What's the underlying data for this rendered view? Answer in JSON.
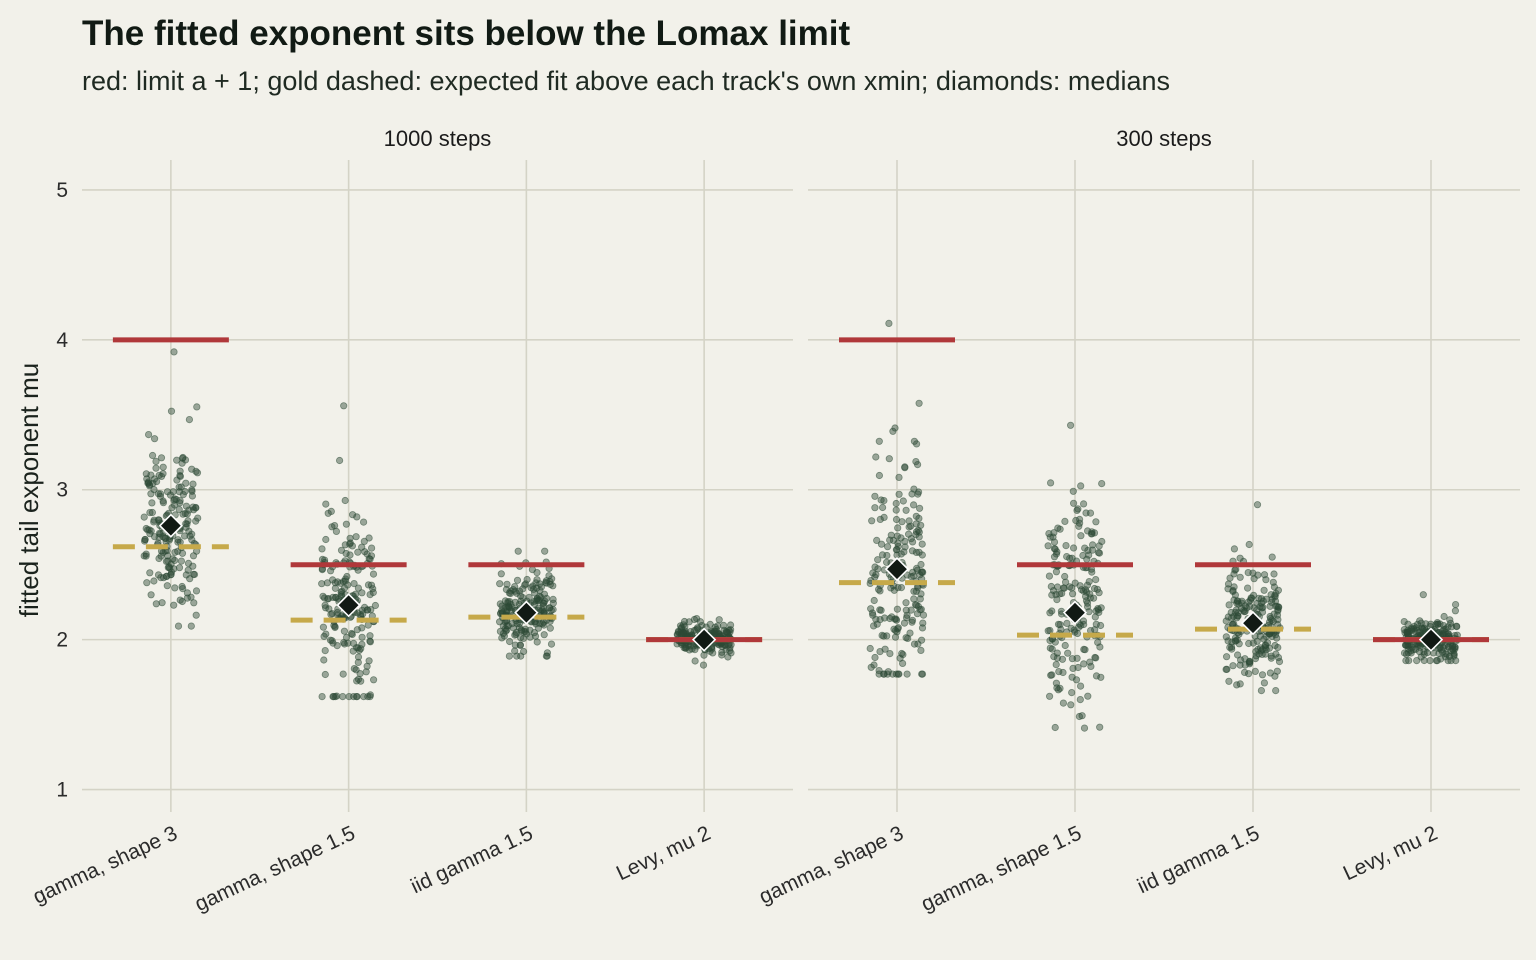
{
  "title": "The fitted exponent sits below the Lomax limit",
  "subtitle": "red: limit a + 1; gold dashed: expected fit above each track's own xmin; diamonds: medians",
  "chart_data": {
    "type": "scatter",
    "ylabel": "fitted tail exponent mu",
    "xlabel": "",
    "ylim": [
      0.85,
      5.2
    ],
    "yticks": [
      1,
      2,
      3,
      4,
      5
    ],
    "categories": [
      "gamma, shape 3",
      "gamma, shape 1.5",
      "iid gamma 1.5",
      "Levy, mu 2"
    ],
    "grid": true,
    "colors": {
      "points": "#2d4a36",
      "limit": "#b0383a",
      "expected": "#c6a94a",
      "median": "#111a14",
      "grid": "#d4d3c6",
      "background": "#f2f1ea"
    },
    "panels": [
      {
        "strip": "1000 steps",
        "groups": [
          {
            "category": "gamma, shape 3",
            "limit": 4.0,
            "expected": 2.62,
            "median": 2.76,
            "spread": 0.3,
            "min": 2.09,
            "max": 3.92
          },
          {
            "category": "gamma, shape 1.5",
            "limit": 2.5,
            "expected": 2.13,
            "median": 2.23,
            "spread": 0.3,
            "min": 1.62,
            "max": 3.56
          },
          {
            "category": "iid gamma 1.5",
            "limit": 2.5,
            "expected": 2.15,
            "median": 2.18,
            "spread": 0.14,
            "min": 1.89,
            "max": 2.59
          },
          {
            "category": "Levy, mu 2",
            "limit": 2.0,
            "expected": 2.0,
            "median": 2.0,
            "spread": 0.05,
            "min": 1.83,
            "max": 2.14
          }
        ]
      },
      {
        "strip": "300 steps",
        "groups": [
          {
            "category": "gamma, shape 3",
            "limit": 4.0,
            "expected": 2.38,
            "median": 2.47,
            "spread": 0.4,
            "min": 1.77,
            "max": 4.11
          },
          {
            "category": "gamma, shape 1.5",
            "limit": 2.5,
            "expected": 2.03,
            "median": 2.18,
            "spread": 0.38,
            "min": 1.41,
            "max": 3.43
          },
          {
            "category": "iid gamma 1.5",
            "limit": 2.5,
            "expected": 2.07,
            "median": 2.11,
            "spread": 0.2,
            "min": 1.66,
            "max": 2.9
          },
          {
            "category": "Levy, mu 2",
            "limit": 2.0,
            "expected": 2.0,
            "median": 2.0,
            "spread": 0.07,
            "min": 1.86,
            "max": 2.3
          }
        ]
      }
    ]
  }
}
